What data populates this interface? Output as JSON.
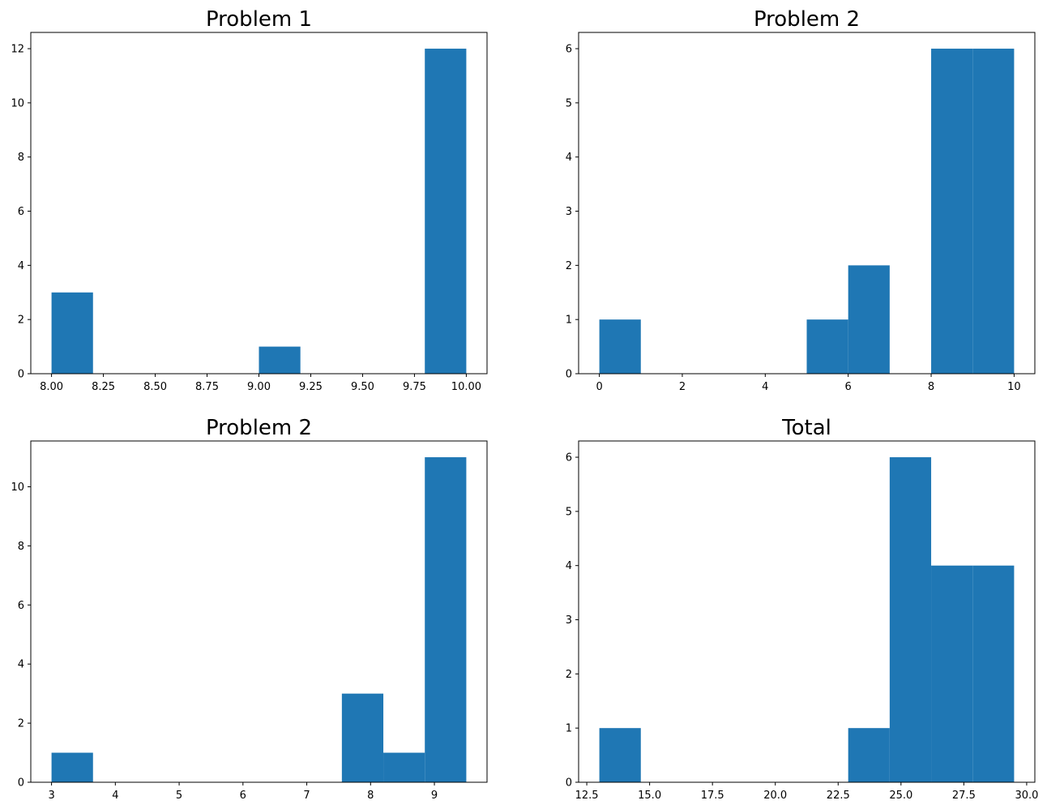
{
  "chart_data": [
    {
      "type": "bar",
      "title": "Problem 1",
      "xlim": [
        7.9,
        10.1
      ],
      "ylim": [
        0,
        12.6
      ],
      "bins": [
        {
          "x0": 8.0,
          "x1": 8.2,
          "count": 3
        },
        {
          "x0": 8.2,
          "x1": 8.4,
          "count": 0
        },
        {
          "x0": 8.4,
          "x1": 8.6,
          "count": 0
        },
        {
          "x0": 8.6,
          "x1": 8.8,
          "count": 0
        },
        {
          "x0": 8.8,
          "x1": 9.0,
          "count": 0
        },
        {
          "x0": 9.0,
          "x1": 9.2,
          "count": 1
        },
        {
          "x0": 9.2,
          "x1": 9.4,
          "count": 0
        },
        {
          "x0": 9.4,
          "x1": 9.6,
          "count": 0
        },
        {
          "x0": 9.6,
          "x1": 9.8,
          "count": 0
        },
        {
          "x0": 9.8,
          "x1": 10.0,
          "count": 12
        }
      ],
      "xticks": [
        8.0,
        8.25,
        8.5,
        8.75,
        9.0,
        9.25,
        9.5,
        9.75,
        10.0
      ],
      "xtick_labels": [
        "8.00",
        "8.25",
        "8.50",
        "8.75",
        "9.00",
        "9.25",
        "9.50",
        "9.75",
        "10.00"
      ],
      "yticks": [
        0,
        2,
        4,
        6,
        8,
        10,
        12
      ],
      "ytick_labels": [
        "0",
        "2",
        "4",
        "6",
        "8",
        "10",
        "12"
      ],
      "color": "#1f77b4",
      "grid": false
    },
    {
      "type": "bar",
      "title": "Problem 2",
      "xlim": [
        -0.5,
        10.5
      ],
      "ylim": [
        0,
        6.3
      ],
      "bins": [
        {
          "x0": 0,
          "x1": 1,
          "count": 1
        },
        {
          "x0": 1,
          "x1": 2,
          "count": 0
        },
        {
          "x0": 2,
          "x1": 3,
          "count": 0
        },
        {
          "x0": 3,
          "x1": 4,
          "count": 0
        },
        {
          "x0": 4,
          "x1": 5,
          "count": 0
        },
        {
          "x0": 5,
          "x1": 6,
          "count": 1
        },
        {
          "x0": 6,
          "x1": 7,
          "count": 2
        },
        {
          "x0": 7,
          "x1": 8,
          "count": 0
        },
        {
          "x0": 8,
          "x1": 9,
          "count": 6
        },
        {
          "x0": 9,
          "x1": 10,
          "count": 6
        }
      ],
      "xticks": [
        0,
        2,
        4,
        6,
        8,
        10
      ],
      "xtick_labels": [
        "0",
        "2",
        "4",
        "6",
        "8",
        "10"
      ],
      "yticks": [
        0,
        1,
        2,
        3,
        4,
        5,
        6
      ],
      "ytick_labels": [
        "0",
        "1",
        "2",
        "3",
        "4",
        "5",
        "6"
      ],
      "color": "#1f77b4",
      "grid": false
    },
    {
      "type": "bar",
      "title": "Problem 2",
      "xlim": [
        2.675,
        9.825
      ],
      "ylim": [
        0,
        11.55
      ],
      "bins": [
        {
          "x0": 3.0,
          "x1": 3.65,
          "count": 1
        },
        {
          "x0": 3.65,
          "x1": 4.3,
          "count": 0
        },
        {
          "x0": 4.3,
          "x1": 4.95,
          "count": 0
        },
        {
          "x0": 4.95,
          "x1": 5.6,
          "count": 0
        },
        {
          "x0": 5.6,
          "x1": 6.25,
          "count": 0
        },
        {
          "x0": 6.25,
          "x1": 6.9,
          "count": 0
        },
        {
          "x0": 6.9,
          "x1": 7.55,
          "count": 0
        },
        {
          "x0": 7.55,
          "x1": 8.2,
          "count": 3
        },
        {
          "x0": 8.2,
          "x1": 8.85,
          "count": 1
        },
        {
          "x0": 8.85,
          "x1": 9.5,
          "count": 11
        }
      ],
      "xticks": [
        3,
        4,
        5,
        6,
        7,
        8,
        9
      ],
      "xtick_labels": [
        "3",
        "4",
        "5",
        "6",
        "7",
        "8",
        "9"
      ],
      "yticks": [
        0,
        2,
        4,
        6,
        8,
        10
      ],
      "ytick_labels": [
        "0",
        "2",
        "4",
        "6",
        "8",
        "10"
      ],
      "color": "#1f77b4",
      "grid": false
    },
    {
      "type": "bar",
      "title": "Total",
      "xlim": [
        12.175,
        30.325
      ],
      "ylim": [
        0,
        6.3
      ],
      "bins": [
        {
          "x0": 13.0,
          "x1": 14.65,
          "count": 1
        },
        {
          "x0": 14.65,
          "x1": 16.3,
          "count": 0
        },
        {
          "x0": 16.3,
          "x1": 17.95,
          "count": 0
        },
        {
          "x0": 17.95,
          "x1": 19.6,
          "count": 0
        },
        {
          "x0": 19.6,
          "x1": 21.25,
          "count": 0
        },
        {
          "x0": 21.25,
          "x1": 22.9,
          "count": 0
        },
        {
          "x0": 22.9,
          "x1": 24.55,
          "count": 1
        },
        {
          "x0": 24.55,
          "x1": 26.2,
          "count": 6
        },
        {
          "x0": 26.2,
          "x1": 27.85,
          "count": 4
        },
        {
          "x0": 27.85,
          "x1": 29.5,
          "count": 4
        }
      ],
      "xticks": [
        12.5,
        15.0,
        17.5,
        20.0,
        22.5,
        25.0,
        27.5,
        30.0
      ],
      "xtick_labels": [
        "12.5",
        "15.0",
        "17.5",
        "20.0",
        "22.5",
        "25.0",
        "27.5",
        "30.0"
      ],
      "yticks": [
        0,
        1,
        2,
        3,
        4,
        5,
        6
      ],
      "ytick_labels": [
        "0",
        "1",
        "2",
        "3",
        "4",
        "5",
        "6"
      ],
      "color": "#1f77b4",
      "grid": false
    }
  ]
}
